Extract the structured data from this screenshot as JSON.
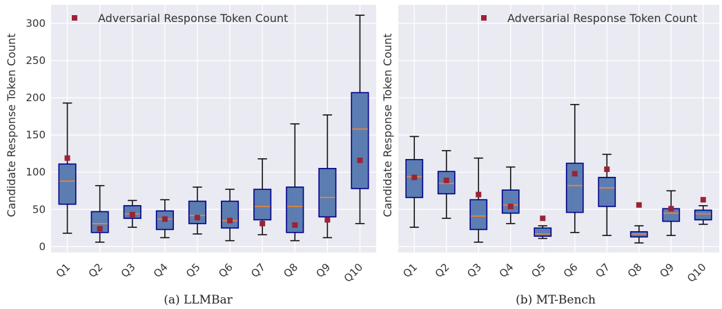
{
  "figure": {
    "colors": {
      "panel_bg": "#EAEAF2",
      "grid": "#FFFFFF",
      "box_fill": "#5B7DB1",
      "box_edge": "#00008B",
      "median": "#E8843A",
      "whisker": "#111111",
      "adversarial_marker": "#9B2335"
    }
  },
  "chart_data": [
    {
      "type": "box",
      "caption": "(a)  LLMBar",
      "ylabel": "Candidate Response Token Count",
      "xlabel": "",
      "ylim": [
        -8,
        325
      ],
      "yticks": [
        0,
        50,
        100,
        150,
        200,
        250,
        300
      ],
      "show_ytick_labels": true,
      "grid": true,
      "legend": {
        "label": "Adversarial Response Token Count",
        "placement": "top"
      },
      "categories": [
        "Q1",
        "Q2",
        "Q3",
        "Q4",
        "Q5",
        "Q6",
        "Q7",
        "Q8",
        "Q9",
        "Q10"
      ],
      "whisker_low": [
        18,
        6,
        26,
        12,
        17,
        8,
        16,
        8,
        12,
        31
      ],
      "q1": [
        57,
        19,
        38,
        23,
        31,
        25,
        36,
        19,
        40,
        78
      ],
      "median": [
        88,
        31,
        44,
        37,
        42,
        35,
        54,
        54,
        66,
        158
      ],
      "q3": [
        111,
        47,
        55,
        48,
        61,
        61,
        77,
        80,
        105,
        207
      ],
      "whisker_high": [
        193,
        82,
        62,
        63,
        80,
        77,
        118,
        165,
        177,
        311
      ],
      "adversarial": [
        119,
        24,
        43,
        37,
        39,
        35,
        31,
        29,
        36,
        116
      ]
    },
    {
      "type": "box",
      "caption": "(b)  MT-Bench",
      "ylabel": "Candidate Response Token Count",
      "xlabel": "",
      "ylim": [
        -8,
        325
      ],
      "yticks": [
        0,
        50,
        100,
        150,
        200,
        250,
        300
      ],
      "show_ytick_labels": false,
      "grid": true,
      "legend": {
        "label": "Adversarial Response Token Count",
        "placement": "top"
      },
      "categories": [
        "Q1",
        "Q2",
        "Q3",
        "Q4",
        "Q5",
        "Q6",
        "Q7",
        "Q8",
        "Q9",
        "Q10"
      ],
      "whisker_low": [
        26,
        38,
        6,
        31,
        11,
        19,
        15,
        5,
        15,
        30
      ],
      "q1": [
        66,
        71,
        23,
        45,
        14,
        46,
        54,
        13,
        34,
        36
      ],
      "median": [
        94,
        85,
        41,
        56,
        17,
        82,
        79,
        17,
        45,
        44
      ],
      "q3": [
        117,
        101,
        63,
        76,
        25,
        112,
        93,
        20,
        51,
        49
      ],
      "whisker_high": [
        148,
        129,
        119,
        107,
        28,
        191,
        124,
        28,
        75,
        55
      ],
      "adversarial": [
        93,
        89,
        70,
        54,
        38,
        98,
        104,
        56,
        51,
        63
      ]
    }
  ]
}
